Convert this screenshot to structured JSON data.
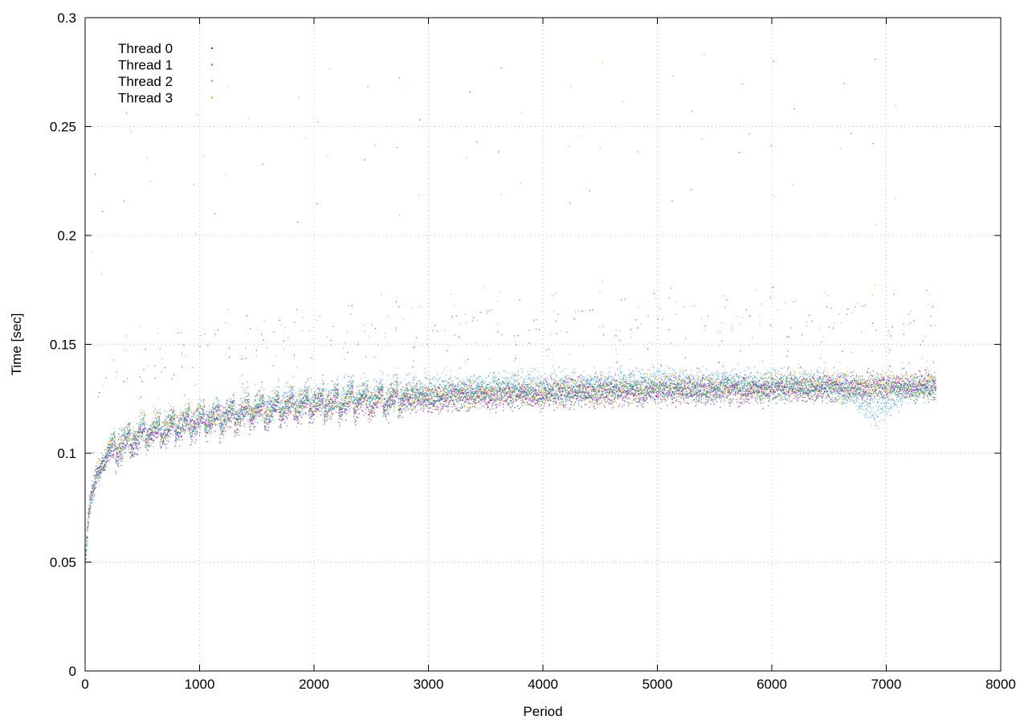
{
  "chart_data": {
    "type": "scatter",
    "title": "",
    "xlabel": "Period",
    "ylabel": "Time [sec]",
    "xlim": [
      0,
      8000
    ],
    "ylim": [
      0,
      0.3
    ],
    "x_ticks": [
      0,
      1000,
      2000,
      3000,
      4000,
      5000,
      6000,
      7000,
      8000
    ],
    "y_ticks": [
      0,
      0.05,
      0.1,
      0.15,
      0.2,
      0.25,
      0.3
    ],
    "x_tick_labels": [
      "0",
      "1000",
      "2000",
      "3000",
      "4000",
      "5000",
      "6000",
      "7000",
      "8000"
    ],
    "y_tick_labels": [
      "0",
      "0.05",
      "0.1",
      "0.15",
      "0.2",
      "0.25",
      "0.3"
    ],
    "grid": true,
    "legend_position": "top-left",
    "x_max_observed": 7430,
    "series": [
      {
        "name": "Thread 0",
        "color": "#9400d3",
        "x": [
          0,
          25,
          50,
          100,
          150,
          200,
          300,
          400,
          500,
          700,
          1000,
          1300,
          1500,
          1800,
          2000,
          2300,
          2500,
          2800,
          3000,
          3300,
          3600,
          4000,
          4300,
          4600,
          5000,
          5300,
          5600,
          6000,
          6300,
          6600,
          6900,
          7200,
          7430
        ],
        "values": [
          0.052,
          0.07,
          0.08,
          0.09,
          0.095,
          0.1,
          0.103,
          0.105,
          0.108,
          0.111,
          0.114,
          0.117,
          0.119,
          0.121,
          0.122,
          0.123,
          0.124,
          0.125,
          0.125,
          0.126,
          0.127,
          0.127,
          0.128,
          0.128,
          0.129,
          0.129,
          0.129,
          0.13,
          0.13,
          0.13,
          0.131,
          0.131,
          0.131
        ]
      },
      {
        "name": "Thread 1",
        "color": "#009e73",
        "x": [
          0,
          25,
          50,
          100,
          150,
          200,
          300,
          400,
          500,
          700,
          1000,
          1300,
          1500,
          1800,
          2000,
          2300,
          2500,
          2800,
          3000,
          3300,
          3600,
          4000,
          4300,
          4600,
          5000,
          5300,
          5600,
          6000,
          6300,
          6600,
          6900,
          7200,
          7430
        ],
        "values": [
          0.053,
          0.071,
          0.081,
          0.091,
          0.096,
          0.101,
          0.104,
          0.106,
          0.109,
          0.112,
          0.115,
          0.118,
          0.12,
          0.122,
          0.123,
          0.124,
          0.125,
          0.126,
          0.126,
          0.127,
          0.128,
          0.128,
          0.128,
          0.129,
          0.13,
          0.129,
          0.13,
          0.13,
          0.131,
          0.13,
          0.13,
          0.131,
          0.13
        ]
      },
      {
        "name": "Thread 2",
        "color": "#56b4e9",
        "x": [
          0,
          25,
          50,
          100,
          150,
          200,
          300,
          400,
          500,
          700,
          1000,
          1300,
          1500,
          1800,
          2000,
          2300,
          2500,
          2800,
          3000,
          3300,
          3600,
          4000,
          4300,
          4600,
          5000,
          5300,
          5600,
          6000,
          6300,
          6600,
          6900,
          7200,
          7430
        ],
        "values": [
          0.052,
          0.07,
          0.08,
          0.09,
          0.096,
          0.1,
          0.104,
          0.107,
          0.11,
          0.113,
          0.117,
          0.12,
          0.123,
          0.125,
          0.126,
          0.128,
          0.128,
          0.129,
          0.13,
          0.131,
          0.132,
          0.132,
          0.132,
          0.133,
          0.134,
          0.133,
          0.133,
          0.132,
          0.132,
          0.131,
          0.118,
          0.13,
          0.132
        ]
      },
      {
        "name": "Thread 3",
        "color": "#e69f00",
        "x": [
          0,
          25,
          50,
          100,
          150,
          200,
          300,
          400,
          500,
          700,
          1000,
          1300,
          1500,
          1800,
          2000,
          2300,
          2500,
          2800,
          3000,
          3300,
          3600,
          4000,
          4300,
          4600,
          5000,
          5300,
          5600,
          6000,
          6300,
          6600,
          6900,
          7200,
          7430
        ],
        "values": [
          0.054,
          0.072,
          0.082,
          0.092,
          0.097,
          0.102,
          0.105,
          0.107,
          0.11,
          0.113,
          0.116,
          0.118,
          0.121,
          0.122,
          0.123,
          0.124,
          0.125,
          0.126,
          0.127,
          0.127,
          0.128,
          0.128,
          0.129,
          0.129,
          0.13,
          0.13,
          0.13,
          0.131,
          0.131,
          0.131,
          0.131,
          0.132,
          0.131
        ]
      }
    ]
  }
}
